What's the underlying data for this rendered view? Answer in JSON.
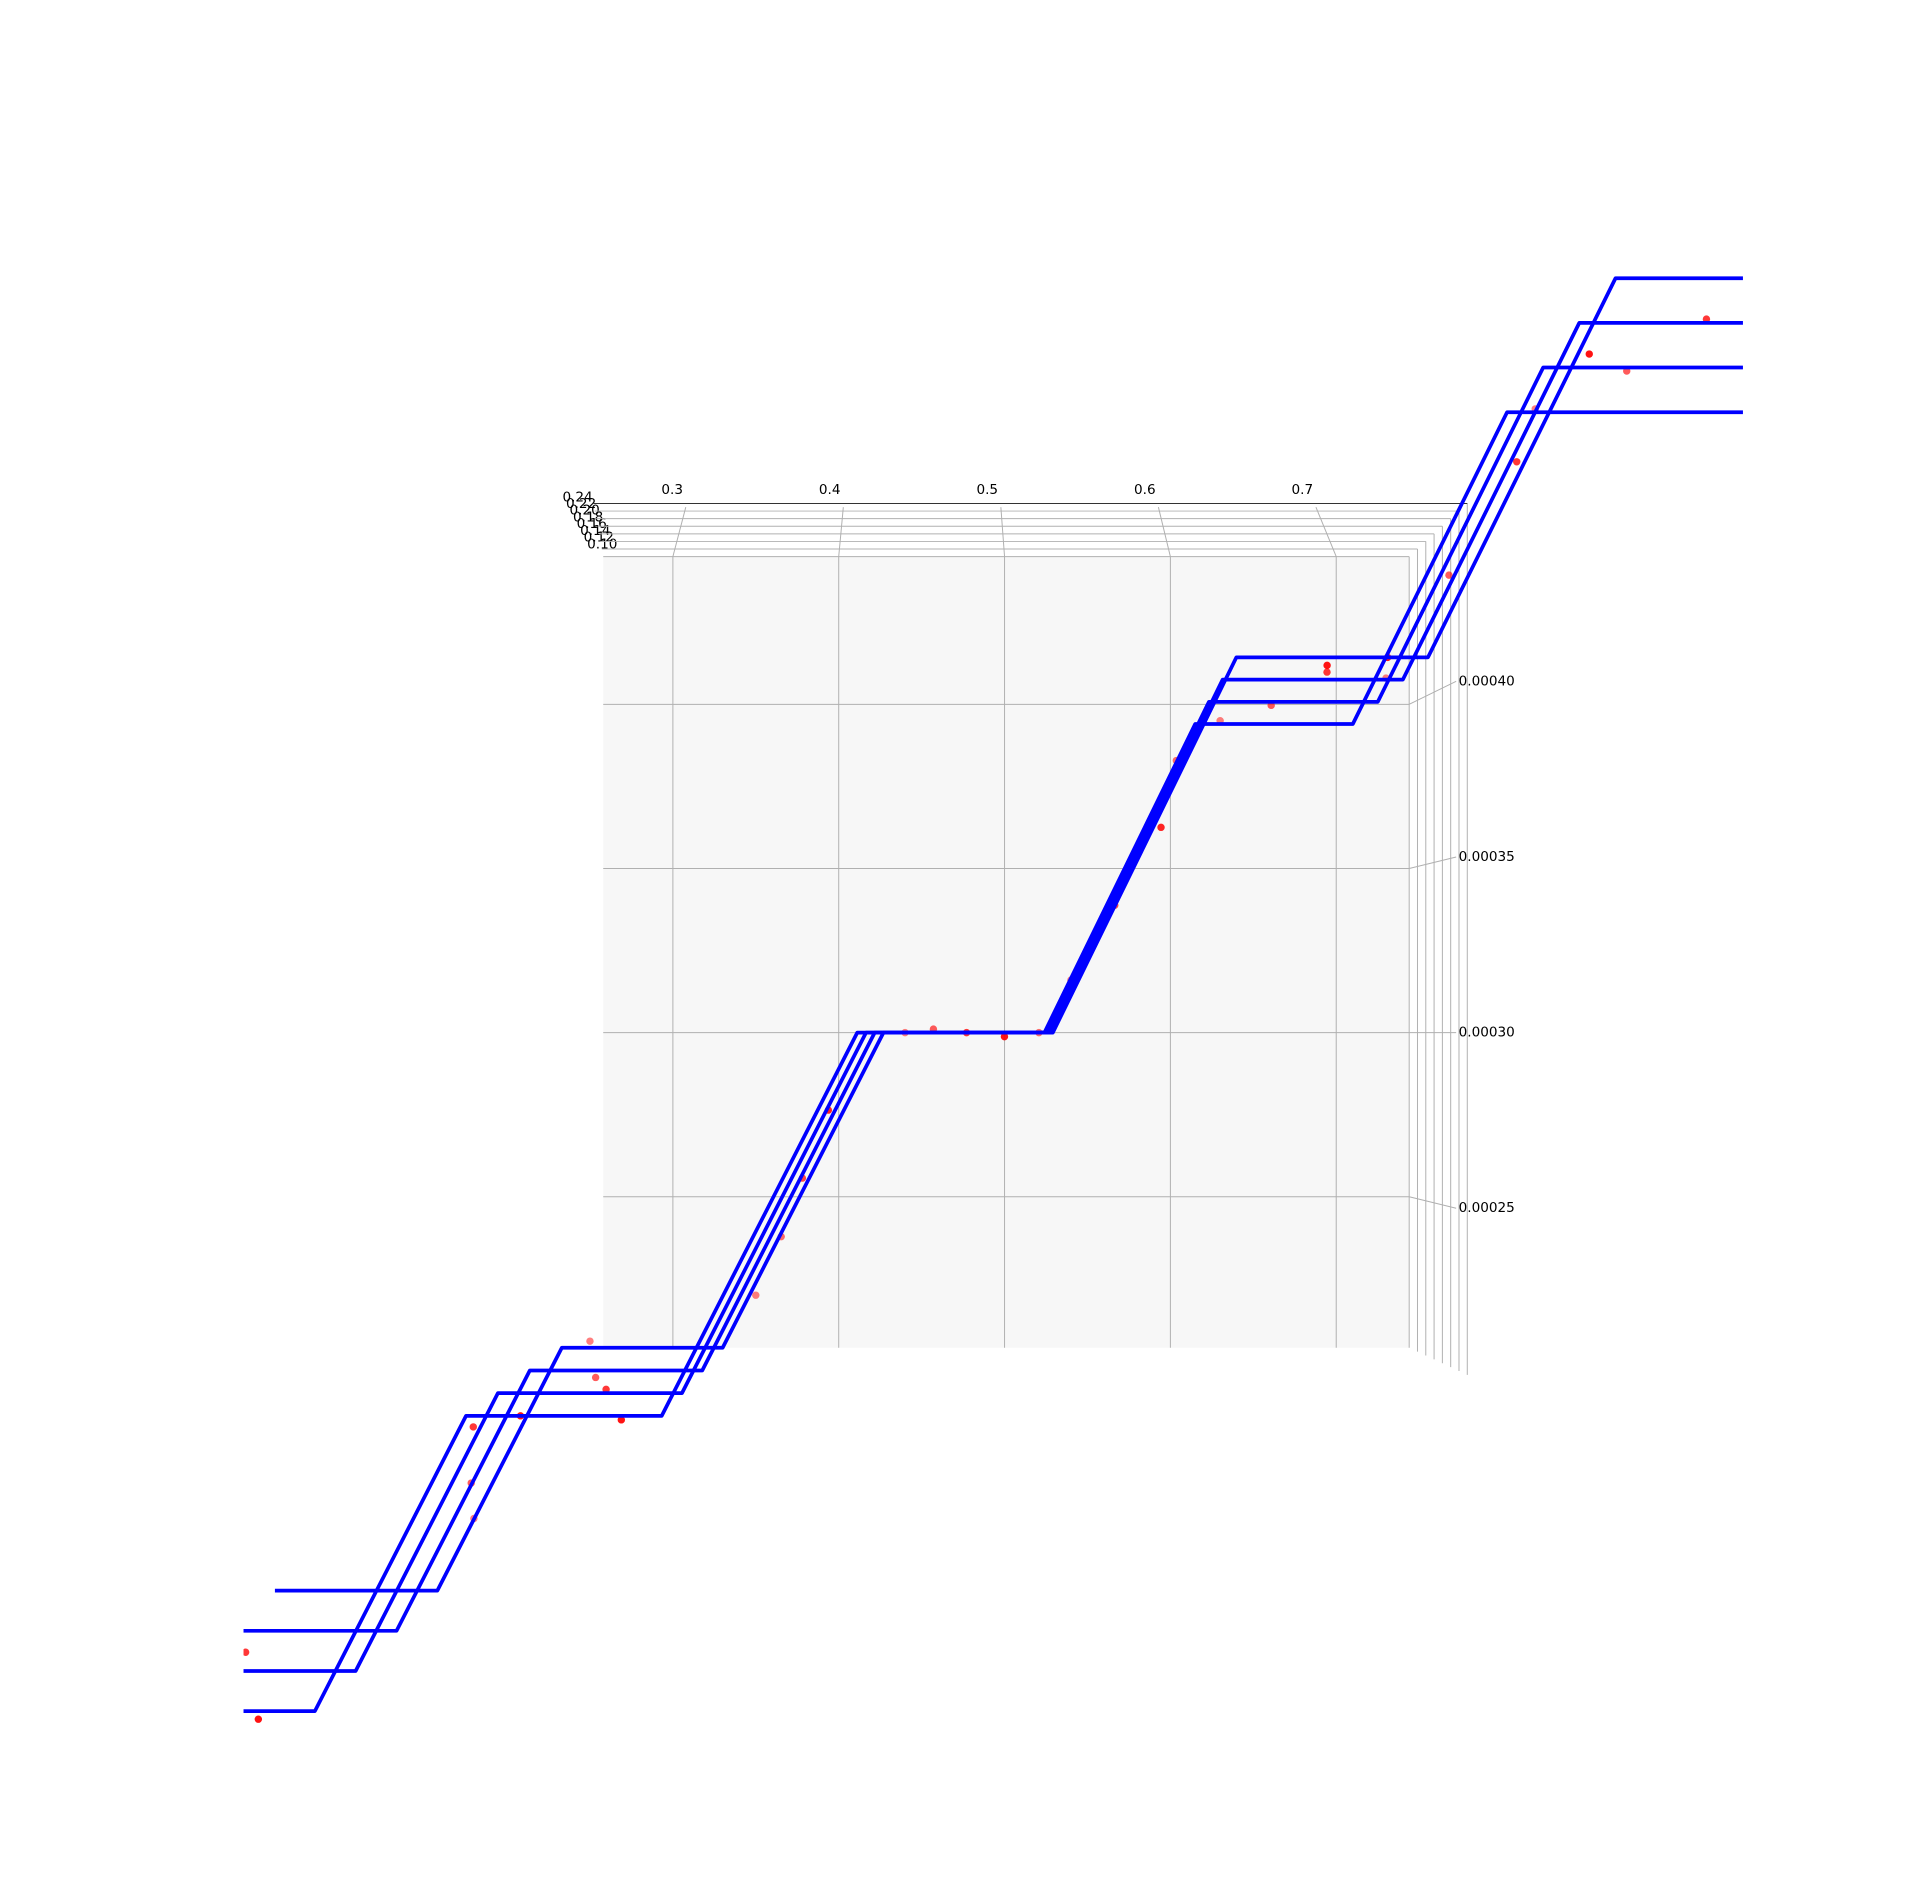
{
  "chart_data": {
    "type": "line3d",
    "xlim": [
      0.258,
      0.744
    ],
    "ylim": [
      0.1,
      0.24
    ],
    "zlim": [
      0.000204,
      0.000445
    ],
    "xticks": [
      0.3,
      0.4,
      0.5,
      0.6,
      0.7
    ],
    "yticks": [
      {
        "value": 0.1,
        "label": "0.10"
      },
      0.12,
      0.14,
      0.16,
      0.18,
      {
        "value": 0.2,
        "label": "0.20"
      },
      0.22,
      0.24
    ],
    "zticks": [
      0.00025,
      {
        "value": 0.0003,
        "label": "0.00030"
      },
      0.00035,
      {
        "value": 0.0004,
        "label": "0.00040"
      }
    ],
    "grid": true,
    "line_color": "#0000ff",
    "point_color": "#ff0000",
    "series": [
      {
        "y": 0.1,
        "x": [
          0.06,
          0.158,
          0.233,
          0.33,
          0.427,
          0.524,
          0.615,
          0.71,
          0.803,
          0.9,
          0.95
        ],
        "z": [
          0.00013,
          0.00013,
          0.000204,
          0.000204,
          0.0003,
          0.0003,
          0.000394,
          0.000394,
          0.000489,
          0.000489,
          0.000489
        ]
      },
      {
        "y": 0.14,
        "x": [
          0.06,
          0.158,
          0.233,
          0.33,
          0.427,
          0.524,
          0.615,
          0.71,
          0.803,
          0.9,
          0.95
        ],
        "z": [
          0.00013,
          0.00013,
          0.000204,
          0.000204,
          0.0003,
          0.0003,
          0.000394,
          0.000394,
          0.000489,
          0.000489,
          0.000489
        ]
      },
      {
        "y": 0.18,
        "x": [
          0.06,
          0.158,
          0.233,
          0.33,
          0.427,
          0.524,
          0.615,
          0.71,
          0.803,
          0.9,
          0.95
        ],
        "z": [
          0.00013,
          0.00013,
          0.000204,
          0.000204,
          0.0003,
          0.0003,
          0.000394,
          0.000394,
          0.000489,
          0.000489,
          0.000489
        ]
      },
      {
        "y": 0.22,
        "x": [
          0.06,
          0.158,
          0.233,
          0.33,
          0.427,
          0.524,
          0.615,
          0.71,
          0.803,
          0.9,
          0.95
        ],
        "z": [
          0.00013,
          0.00013,
          0.000204,
          0.000204,
          0.0003,
          0.0003,
          0.000394,
          0.000394,
          0.000489,
          0.000489,
          0.000489
        ]
      }
    ],
    "points": {
      "x": [
        0.1,
        0.13,
        0.18,
        0.2,
        0.22,
        0.25,
        0.27,
        0.29,
        0.31,
        0.26,
        0.35,
        0.37,
        0.39,
        0.41,
        0.44,
        0.46,
        0.48,
        0.5,
        0.52,
        0.54,
        0.56,
        0.58,
        0.6,
        0.63,
        0.65,
        0.67,
        0.69,
        0.66,
        0.73,
        0.75,
        0.77,
        0.79,
        0.82,
        0.85,
        0.87,
        0.89
      ],
      "y": [
        0.18,
        0.22,
        0.1,
        0.14,
        0.18,
        0.1,
        0.14,
        0.18,
        0.22,
        0.22,
        0.1,
        0.12,
        0.16,
        0.2,
        0.1,
        0.14,
        0.18,
        0.22,
        0.12,
        0.1,
        0.16,
        0.2,
        0.12,
        0.1,
        0.14,
        0.18,
        0.22,
        0.22,
        0.1,
        0.14,
        0.18,
        0.22,
        0.1,
        0.14,
        0.18,
        0.22
      ],
      "z": [
        0.000135,
        0.000128,
        0.000152,
        0.000172,
        0.000195,
        0.000206,
        0.000202,
        0.000205,
        0.000203,
        0.000204,
        0.00022,
        0.00024,
        0.00026,
        0.00028,
        0.0003,
        0.000301,
        0.0003,
        0.000299,
        0.0003,
        0.000316,
        0.000335,
        0.000353,
        0.00038,
        0.000395,
        0.000393,
        0.000396,
        0.000394,
        0.000392,
        0.000408,
        0.00043,
        0.000452,
        0.00047,
        0.00049,
        0.000488,
        0.00049,
        0.000487
      ]
    }
  }
}
